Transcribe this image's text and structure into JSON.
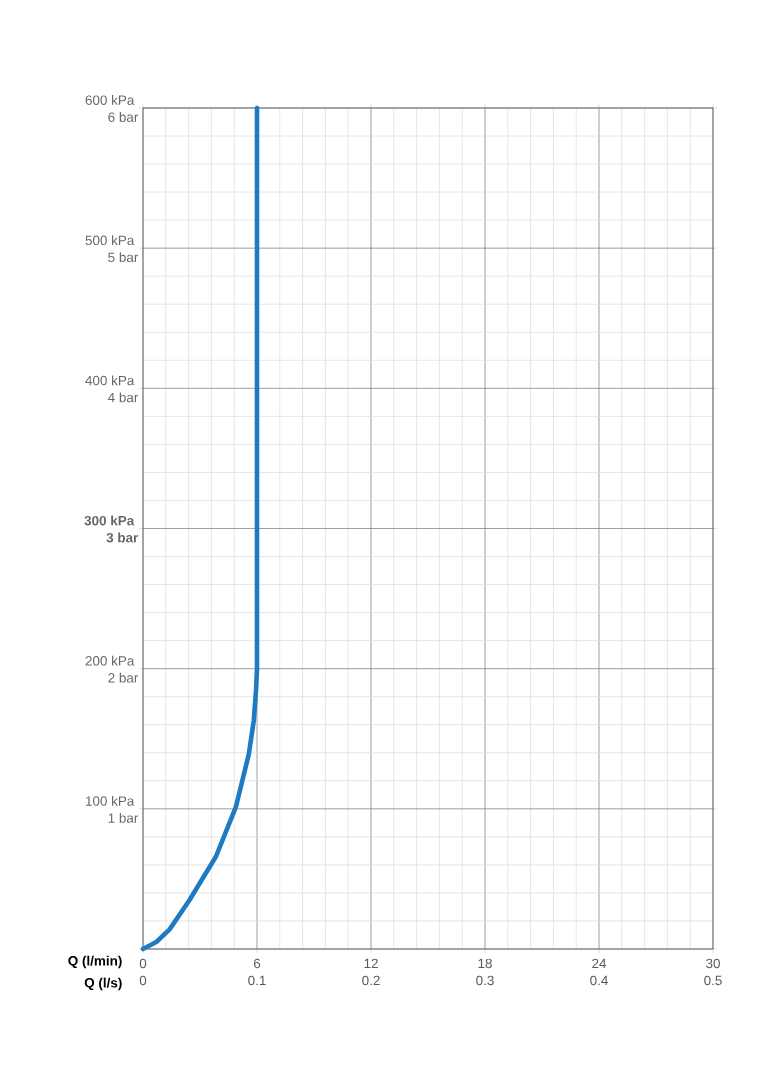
{
  "chart_data": {
    "type": "line",
    "xlabel": "Q (l/min)",
    "x2label": "Q (l/s)",
    "xlim": [
      0,
      30
    ],
    "xticks": [
      0,
      6,
      12,
      18,
      24,
      30
    ],
    "x2lim": [
      0,
      0.5
    ],
    "x2ticks": [
      0,
      0.1,
      0.2,
      0.3,
      0.4,
      0.5
    ],
    "ylim": [
      0,
      600
    ],
    "yticks": [
      {
        "value": 0,
        "label": null
      },
      {
        "value": 100,
        "label": "100 kPa"
      },
      {
        "value": 200,
        "label": "200 kPa"
      },
      {
        "value": 300,
        "label": "**300 kPa**"
      },
      {
        "value": 400,
        "label": "400 kPa"
      },
      {
        "value": 500,
        "label": "500 kPa"
      },
      {
        "value": 600,
        "label": "600 kPa"
      }
    ],
    "y2lim": [
      0,
      6
    ],
    "y2ticks": [
      {
        "value": 0,
        "label": null
      },
      {
        "value": 1,
        "label": "1 bar"
      },
      {
        "value": 2,
        "label": "2 bar"
      },
      {
        "value": 3,
        "label": "**3 bar**"
      },
      {
        "value": 4,
        "label": "4 bar"
      },
      {
        "value": 5,
        "label": "5 bar"
      },
      {
        "value": 6,
        "label": "6 bar"
      }
    ],
    "grid": true,
    "series": [
      {
        "color": "#1f7bc1",
        "x": [
          0,
          0.7,
          1.4,
          2.45,
          3.84,
          4.88,
          5.57,
          5.83,
          5.95,
          6,
          6
        ],
        "values": [
          0,
          5,
          14,
          35,
          66,
          101,
          139,
          163,
          185,
          200,
          600
        ]
      }
    ]
  }
}
